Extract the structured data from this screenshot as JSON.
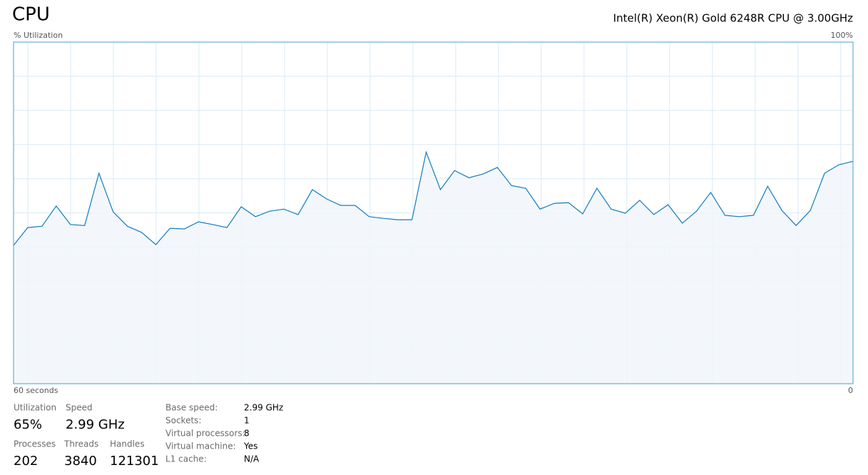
{
  "header": {
    "title": "CPU",
    "processor": "Intel(R) Xeon(R) Gold 6248R CPU @ 3.00GHz"
  },
  "chart_data": {
    "type": "area",
    "y_label": "% Utilization",
    "x_labels": [
      "60 seconds",
      "0"
    ],
    "ylim": [
      0,
      100
    ],
    "yticks": [
      {
        "value": 100,
        "label": "100%"
      }
    ],
    "grid": {
      "horizontal": 10,
      "vertical": 20
    },
    "color": "#117dbb",
    "fill": "#f1f6fa",
    "values": [
      40.5,
      45.7,
      46.1,
      52.0,
      46.6,
      46.3,
      61.6,
      50.3,
      46.1,
      44.3,
      40.7,
      45.5,
      45.3,
      47.4,
      46.6,
      45.7,
      51.8,
      48.9,
      50.5,
      51.1,
      49.5,
      56.8,
      54.1,
      52.2,
      52.2,
      48.9,
      48.4,
      48.0,
      48.0,
      67.8,
      56.8,
      62.4,
      60.3,
      61.4,
      63.3,
      58.0,
      57.2,
      51.1,
      52.8,
      53.0,
      49.7,
      57.2,
      51.1,
      49.9,
      53.7,
      49.5,
      52.4,
      47.0,
      50.5,
      56.0,
      49.3,
      48.9,
      49.3,
      57.8,
      50.7,
      46.3,
      50.7,
      61.6,
      64.1,
      65.1
    ]
  },
  "stats": [
    {
      "label": "Utilization",
      "value": "65%"
    },
    {
      "label": "Speed",
      "value": "2.99 GHz"
    },
    {
      "label": "Processes",
      "value": "202"
    },
    {
      "label": "Threads",
      "value": "3840"
    },
    {
      "label": "Handles",
      "value": "121301"
    }
  ],
  "details": [
    [
      "Base speed:",
      "2.99 GHz"
    ],
    [
      "Sockets:",
      "1"
    ],
    [
      "Virtual processors:",
      "8"
    ],
    [
      "Virtual machine:",
      "Yes"
    ],
    [
      "L1 cache:",
      "N/A"
    ]
  ]
}
